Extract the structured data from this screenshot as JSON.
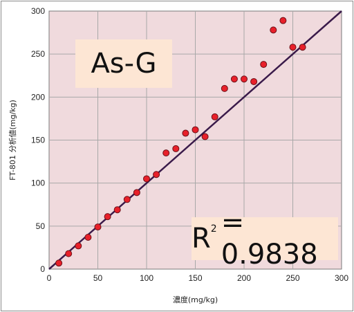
{
  "chart_data": {
    "type": "scatter",
    "title": "",
    "xlabel": "濃度(mg/kg)",
    "ylabel": "FT-801 分析値(mg/kg)",
    "xlim": [
      0,
      300
    ],
    "ylim": [
      0,
      300
    ],
    "x_ticks": [
      "0",
      "50",
      "100",
      "150",
      "200",
      "250",
      "300"
    ],
    "y_ticks": [
      "0",
      "50",
      "100",
      "150",
      "200",
      "250",
      "300"
    ],
    "grid": true,
    "series": [
      {
        "x": [
          10,
          20,
          30,
          40,
          50,
          60,
          70,
          80,
          90,
          100,
          110,
          120,
          130,
          140,
          150,
          160,
          170,
          180,
          190,
          200,
          210,
          220,
          230,
          240,
          250,
          260
        ],
        "y": [
          7,
          18,
          27,
          37,
          49,
          61,
          69,
          81,
          89,
          105,
          110,
          135,
          140,
          158,
          162,
          154,
          177,
          210,
          221,
          221,
          218,
          238,
          278,
          289,
          258,
          258
        ]
      }
    ],
    "trendline": {
      "x": [
        0,
        300
      ],
      "y": [
        0,
        300
      ]
    },
    "annotations": {
      "element": "As-G",
      "r2_label": "R",
      "r2_sup": "2",
      "r2_value": "= 0.9838"
    },
    "colors": {
      "plot_bg": "#f0dadd",
      "marker_fill": "#e8202a",
      "marker_edge": "#6a1018",
      "line": "#3a1a4a",
      "label_bg": "#fde6d4"
    }
  }
}
